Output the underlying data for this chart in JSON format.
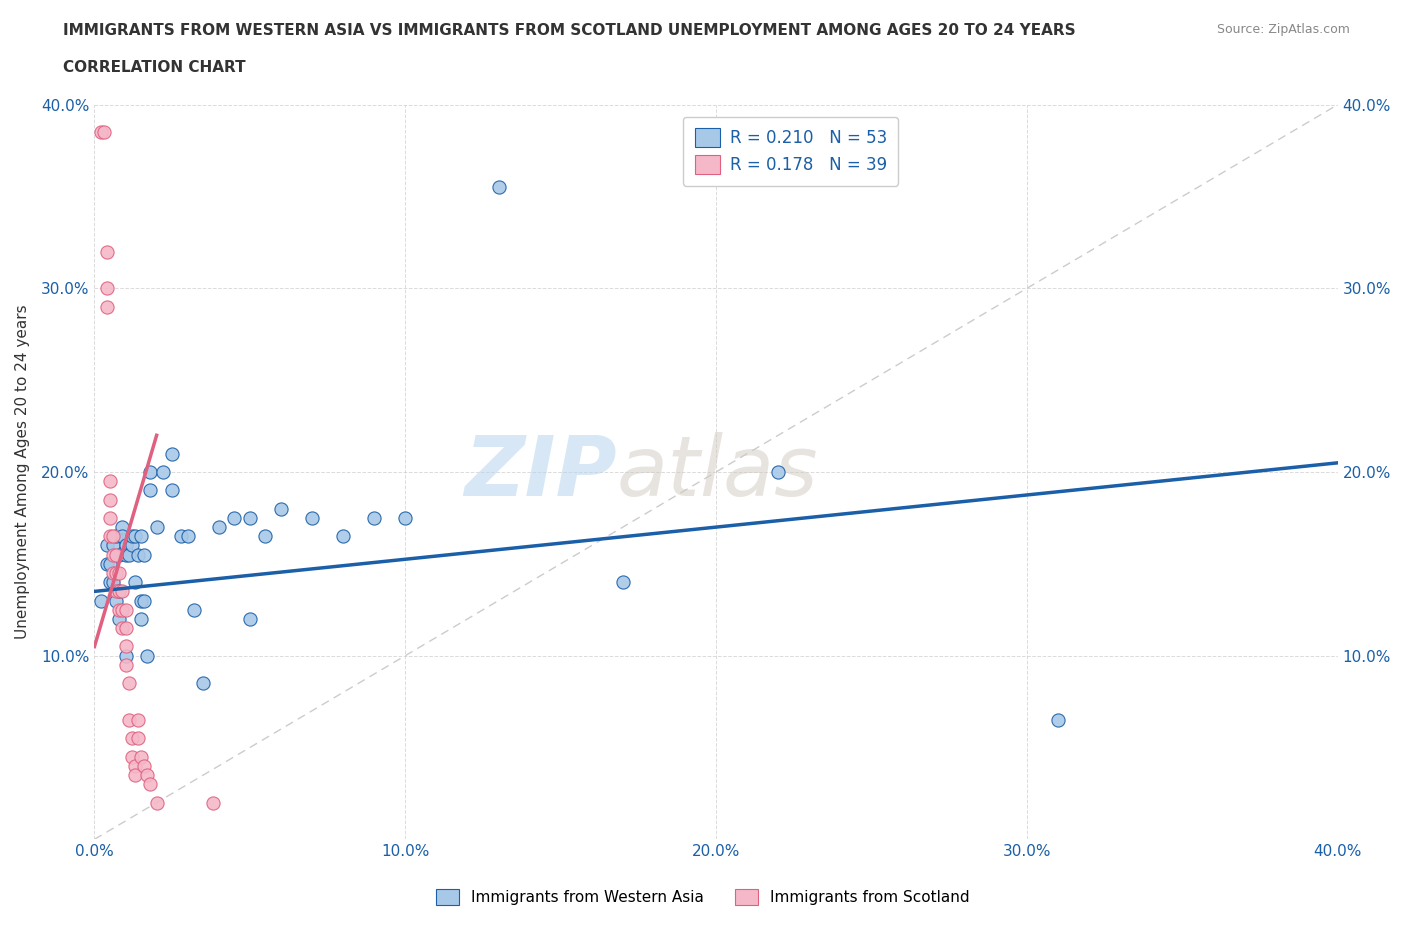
{
  "title_line1": "IMMIGRANTS FROM WESTERN ASIA VS IMMIGRANTS FROM SCOTLAND UNEMPLOYMENT AMONG AGES 20 TO 24 YEARS",
  "title_line2": "CORRELATION CHART",
  "source_text": "Source: ZipAtlas.com",
  "ylabel": "Unemployment Among Ages 20 to 24 years",
  "xlim": [
    0.0,
    0.4
  ],
  "ylim": [
    0.0,
    0.4
  ],
  "xticks": [
    0.0,
    0.1,
    0.2,
    0.3,
    0.4
  ],
  "yticks": [
    0.0,
    0.1,
    0.2,
    0.3,
    0.4
  ],
  "xticklabels": [
    "0.0%",
    "10.0%",
    "20.0%",
    "30.0%",
    "40.0%"
  ],
  "yticklabels": [
    "",
    "10.0%",
    "20.0%",
    "30.0%",
    "40.0%"
  ],
  "grid_color": "#cccccc",
  "diagonal_color": "#cccccc",
  "watermark_zip": "ZIP",
  "watermark_atlas": "atlas",
  "legend_R1": "R = 0.210",
  "legend_N1": "N = 53",
  "legend_R2": "R = 0.178",
  "legend_N2": "N = 39",
  "color_blue": "#a8c8e8",
  "color_pink": "#f4b8c8",
  "color_blue_line": "#1a5fa8",
  "color_pink_line": "#e06080",
  "legend_label1": "Immigrants from Western Asia",
  "legend_label2": "Immigrants from Scotland",
  "blue_points": [
    [
      0.002,
      0.13
    ],
    [
      0.004,
      0.15
    ],
    [
      0.004,
      0.16
    ],
    [
      0.005,
      0.14
    ],
    [
      0.005,
      0.15
    ],
    [
      0.006,
      0.16
    ],
    [
      0.006,
      0.14
    ],
    [
      0.007,
      0.165
    ],
    [
      0.007,
      0.13
    ],
    [
      0.008,
      0.155
    ],
    [
      0.008,
      0.12
    ],
    [
      0.008,
      0.135
    ],
    [
      0.009,
      0.17
    ],
    [
      0.009,
      0.165
    ],
    [
      0.01,
      0.16
    ],
    [
      0.01,
      0.155
    ],
    [
      0.01,
      0.1
    ],
    [
      0.011,
      0.155
    ],
    [
      0.012,
      0.16
    ],
    [
      0.012,
      0.165
    ],
    [
      0.013,
      0.14
    ],
    [
      0.013,
      0.165
    ],
    [
      0.014,
      0.155
    ],
    [
      0.015,
      0.165
    ],
    [
      0.015,
      0.13
    ],
    [
      0.015,
      0.12
    ],
    [
      0.016,
      0.155
    ],
    [
      0.016,
      0.13
    ],
    [
      0.017,
      0.1
    ],
    [
      0.018,
      0.2
    ],
    [
      0.018,
      0.19
    ],
    [
      0.02,
      0.17
    ],
    [
      0.022,
      0.2
    ],
    [
      0.025,
      0.21
    ],
    [
      0.025,
      0.19
    ],
    [
      0.028,
      0.165
    ],
    [
      0.03,
      0.165
    ],
    [
      0.032,
      0.125
    ],
    [
      0.035,
      0.085
    ],
    [
      0.04,
      0.17
    ],
    [
      0.045,
      0.175
    ],
    [
      0.05,
      0.12
    ],
    [
      0.05,
      0.175
    ],
    [
      0.055,
      0.165
    ],
    [
      0.06,
      0.18
    ],
    [
      0.07,
      0.175
    ],
    [
      0.08,
      0.165
    ],
    [
      0.09,
      0.175
    ],
    [
      0.1,
      0.175
    ],
    [
      0.13,
      0.355
    ],
    [
      0.17,
      0.14
    ],
    [
      0.22,
      0.2
    ],
    [
      0.31,
      0.065
    ]
  ],
  "pink_points": [
    [
      0.002,
      0.385
    ],
    [
      0.003,
      0.385
    ],
    [
      0.004,
      0.32
    ],
    [
      0.004,
      0.3
    ],
    [
      0.004,
      0.29
    ],
    [
      0.005,
      0.195
    ],
    [
      0.005,
      0.185
    ],
    [
      0.005,
      0.175
    ],
    [
      0.005,
      0.165
    ],
    [
      0.006,
      0.165
    ],
    [
      0.006,
      0.155
    ],
    [
      0.006,
      0.145
    ],
    [
      0.007,
      0.155
    ],
    [
      0.007,
      0.145
    ],
    [
      0.007,
      0.135
    ],
    [
      0.008,
      0.145
    ],
    [
      0.008,
      0.135
    ],
    [
      0.008,
      0.125
    ],
    [
      0.009,
      0.135
    ],
    [
      0.009,
      0.125
    ],
    [
      0.009,
      0.115
    ],
    [
      0.01,
      0.125
    ],
    [
      0.01,
      0.115
    ],
    [
      0.01,
      0.105
    ],
    [
      0.01,
      0.095
    ],
    [
      0.011,
      0.085
    ],
    [
      0.011,
      0.065
    ],
    [
      0.012,
      0.055
    ],
    [
      0.012,
      0.045
    ],
    [
      0.013,
      0.04
    ],
    [
      0.013,
      0.035
    ],
    [
      0.014,
      0.065
    ],
    [
      0.014,
      0.055
    ],
    [
      0.015,
      0.045
    ],
    [
      0.016,
      0.04
    ],
    [
      0.017,
      0.035
    ],
    [
      0.018,
      0.03
    ],
    [
      0.02,
      0.02
    ],
    [
      0.038,
      0.02
    ]
  ],
  "blue_trend_x": [
    0.0,
    0.4
  ],
  "blue_trend_y": [
    0.135,
    0.205
  ],
  "pink_trend_x": [
    0.0,
    0.02
  ],
  "pink_trend_y": [
    0.105,
    0.22
  ]
}
